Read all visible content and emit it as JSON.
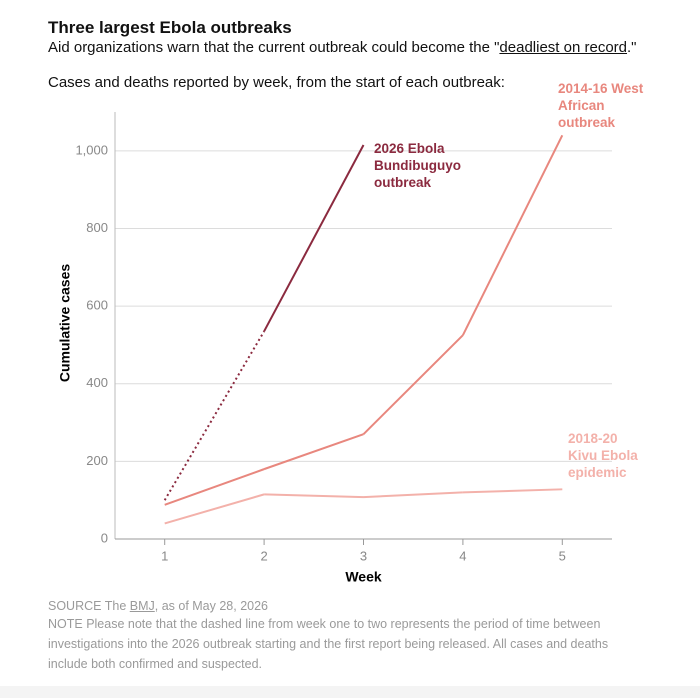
{
  "chart_data": {
    "type": "line",
    "title": "Three largest Ebola outbreaks",
    "subtitle": {
      "before": "Aid organizations warn that the current outbreak could become the \"",
      "link": "deadliest on record",
      "after": ".\""
    },
    "annotation": "Cases and deaths reported by week, from the start of each outbreak:",
    "x_label": "Week",
    "y_label": "Cumulative cases",
    "x": [
      1,
      2,
      3,
      4,
      5
    ],
    "xlim": [
      0.5,
      5.5
    ],
    "xticks": [
      1,
      2,
      3,
      4,
      5
    ],
    "ylim": [
      0,
      1100
    ],
    "yticks": [
      0,
      200,
      400,
      600,
      800,
      {
        "value": 1000,
        "label": "1,000"
      }
    ],
    "grid": true,
    "series": [
      {
        "name": "2026 Ebola Bundibuguyo outbreak",
        "color": "#8b2a3f",
        "values": [
          100,
          535,
          1015,
          null,
          null
        ],
        "dashed_until": 2
      },
      {
        "name": "2014-16 West African outbreak",
        "color": "#e8877e",
        "values": [
          88,
          180,
          270,
          525,
          1040
        ]
      },
      {
        "name": "2018-20 Kivu Ebola epidemic",
        "color": "#f3b1aa",
        "values": [
          40,
          115,
          108,
          120,
          128
        ]
      }
    ],
    "source": {
      "before": "SOURCE The ",
      "link": "BMJ",
      "after": ", as of May 28, 2026"
    },
    "note": "NOTE Please note that the dashed line from week one to two represents the period of time between investigations into the 2026 outbreak starting and the first report being released. All cases and deaths include both confirmed and suspected."
  }
}
